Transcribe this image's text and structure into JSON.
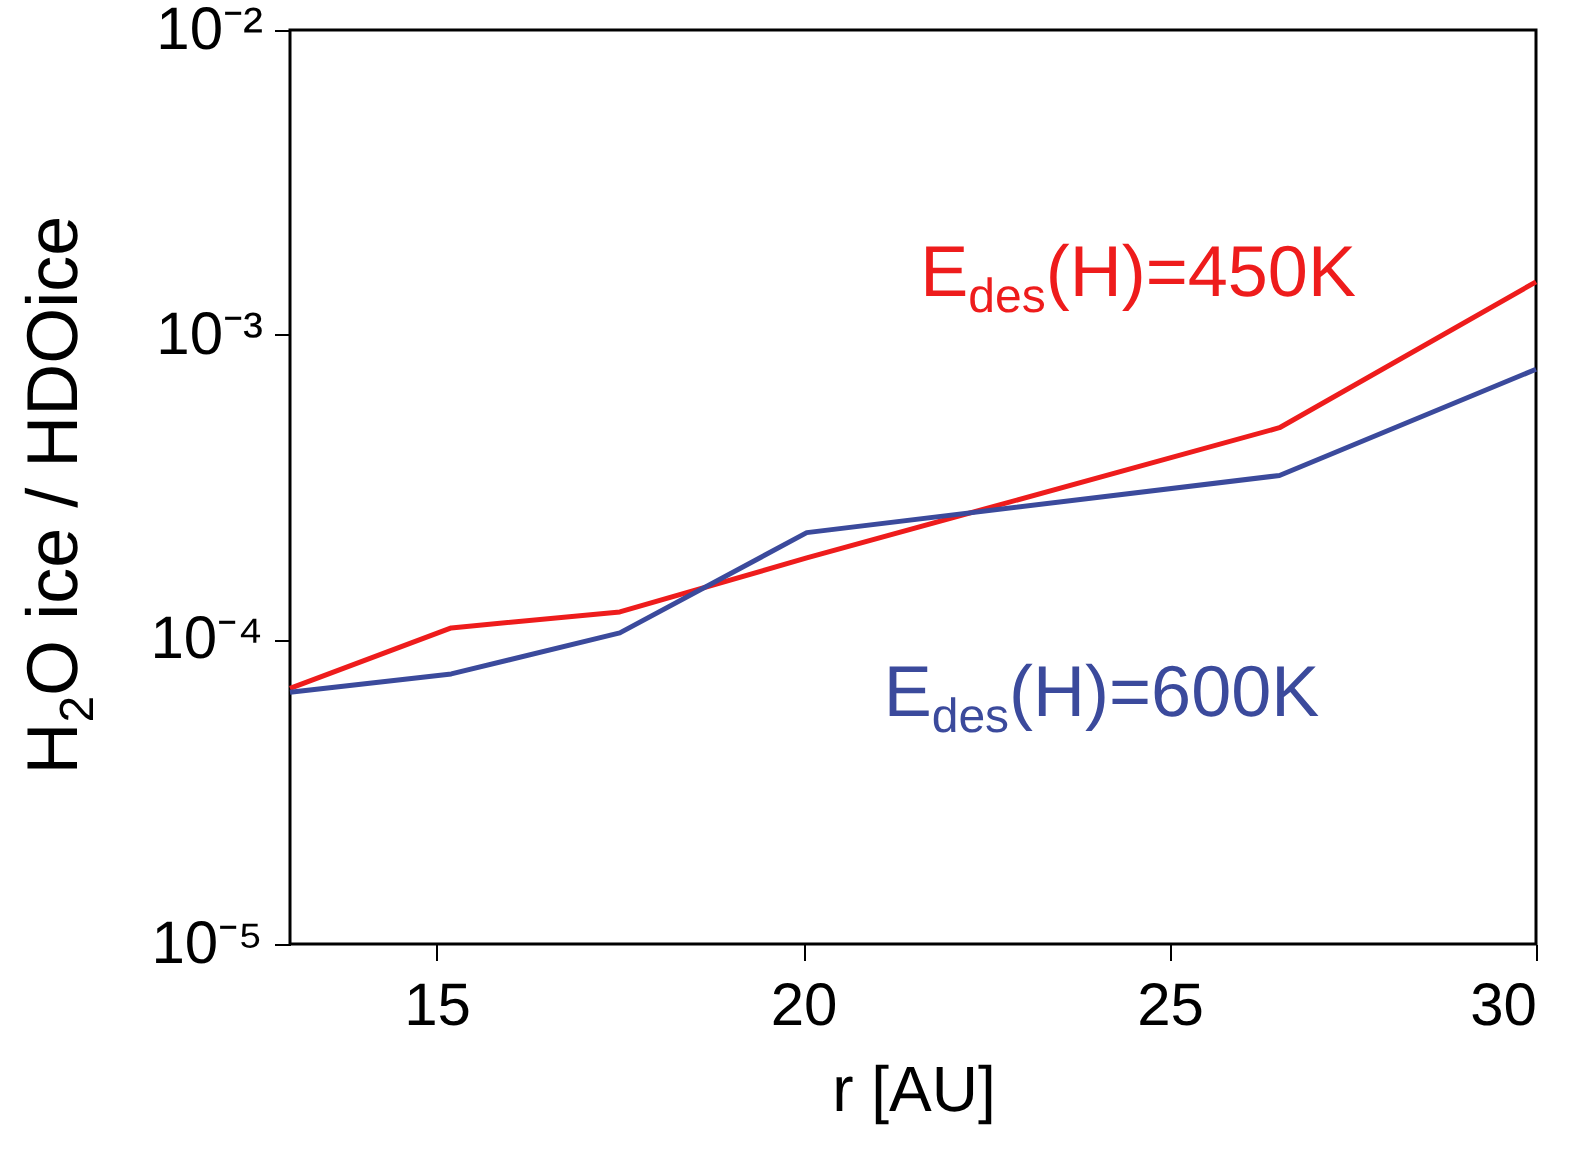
{
  "chart_data": {
    "type": "line",
    "xlabel": "r [AU]",
    "ylabel": "H$_{2}$O ice / HDOice",
    "log": "y",
    "grid": false,
    "legend": false,
    "marker": "none",
    "line_style": "solid",
    "x": [
      13,
      15.2,
      17.5,
      20.05,
      26.5,
      30
    ],
    "xlim": [
      13,
      30
    ],
    "xticks": [
      15,
      20,
      25,
      30
    ],
    "ylim": [
      1e-05,
      0.01
    ],
    "yticks": [
      {
        "value": 1e-05,
        "label": "10⁻⁵"
      },
      {
        "value": 0.0001,
        "label": "10⁻⁴"
      },
      {
        "value": 0.001,
        "label": "10⁻³"
      },
      {
        "value": 0.01,
        "label": "10⁻²"
      }
    ],
    "series": [
      {
        "name": "E$_{des}$(H)=450K",
        "color": "#ee1c1c",
        "values": [
          6.9e-05,
          0.000109,
          0.000123,
          0.000185,
          0.000495,
          0.00149
        ]
      },
      {
        "name": "E$_{des}$(H)=600K",
        "color": "#3b4a9c",
        "values": [
          6.7e-05,
          7.7e-05,
          0.000105,
          0.000224,
          0.000345,
          0.00077
        ]
      }
    ]
  }
}
